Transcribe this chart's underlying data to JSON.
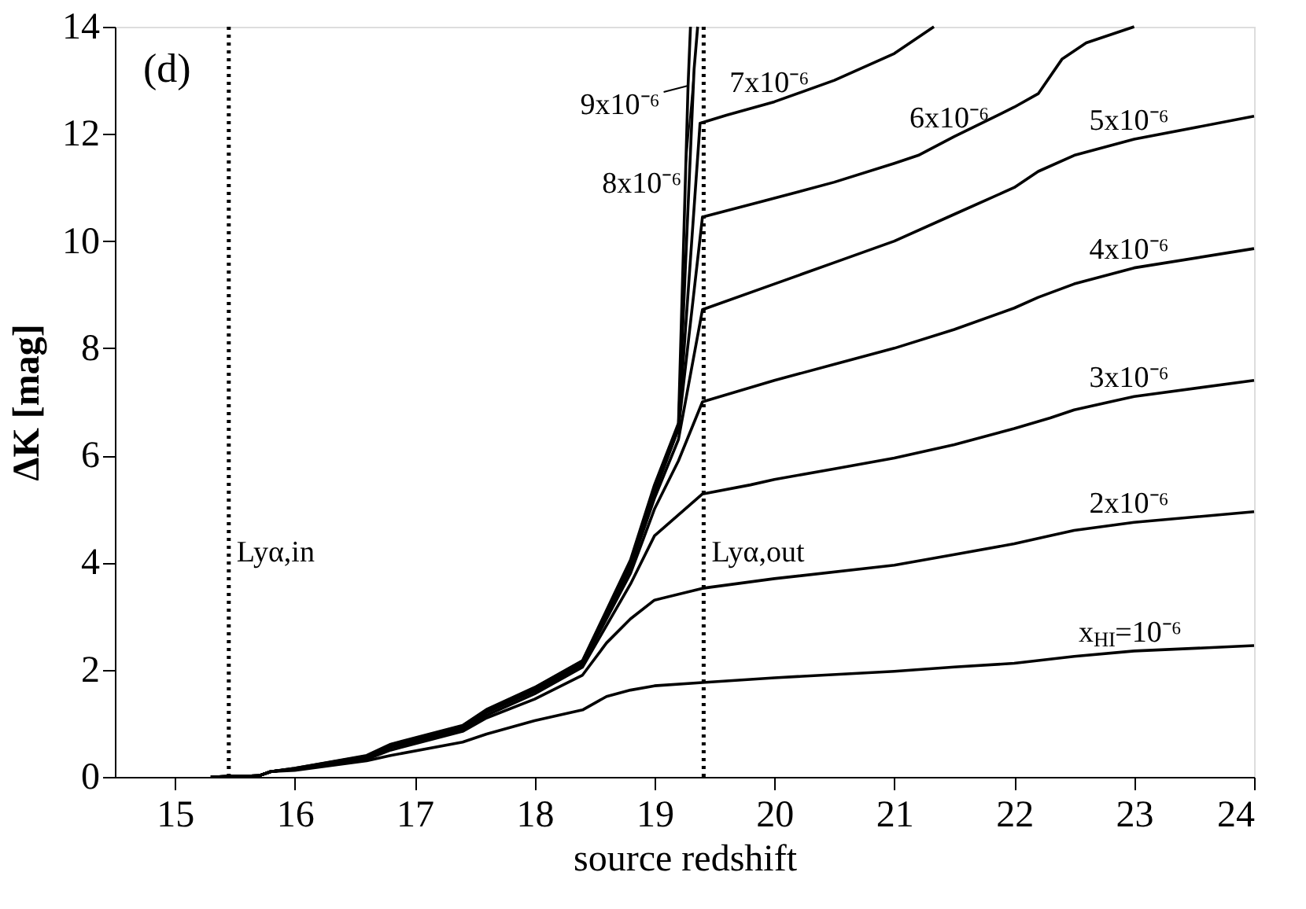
{
  "chart_data": {
    "type": "line",
    "xlabel": "source redshift",
    "ylabel": "ΔK [mag]",
    "xlim": [
      14.5,
      24
    ],
    "xticks": [
      15,
      16,
      17,
      18,
      19,
      20,
      21,
      22,
      23,
      24
    ],
    "ylim": [
      0,
      14
    ],
    "yticks": [
      0,
      2,
      4,
      6,
      8,
      10,
      12,
      14
    ],
    "grid": false,
    "marker": "none",
    "line_style": "solid",
    "series": [
      {
        "color": "#000000",
        "x": [
          15.3,
          15.7,
          15.8,
          16,
          16.6,
          16.8,
          17.4,
          17.6,
          18,
          18.4,
          18.6,
          18.8,
          19,
          19.4,
          20,
          21,
          21.5,
          22,
          22.5,
          23,
          24
        ],
        "values": [
          0,
          0.02,
          0.1,
          0.12,
          0.3,
          0.4,
          0.65,
          0.8,
          1.05,
          1.25,
          1.5,
          1.62,
          1.7,
          1.76,
          1.85,
          1.97,
          2.05,
          2.12,
          2.25,
          2.35,
          2.45
        ]
      },
      {
        "color": "#000000",
        "x": [
          15.3,
          15.7,
          15.8,
          16,
          16.6,
          16.8,
          17.4,
          17.6,
          18,
          18.4,
          18.6,
          18.8,
          19,
          19.4,
          20,
          21,
          21.5,
          22,
          22.3,
          22.5,
          23,
          24
        ],
        "values": [
          0,
          0.02,
          0.1,
          0.14,
          0.33,
          0.5,
          0.85,
          1.1,
          1.45,
          1.9,
          2.5,
          2.95,
          3.3,
          3.52,
          3.7,
          3.95,
          4.15,
          4.35,
          4.5,
          4.6,
          4.75,
          4.95
        ]
      },
      {
        "color": "#000000",
        "x": [
          15.3,
          15.7,
          15.8,
          16,
          16.6,
          16.8,
          17.4,
          17.6,
          18,
          18.4,
          18.8,
          19,
          19.4,
          19.8,
          20,
          20.5,
          21,
          21.5,
          22,
          22.3,
          22.5,
          23,
          24
        ],
        "values": [
          0,
          0.02,
          0.1,
          0.15,
          0.35,
          0.55,
          0.9,
          1.15,
          1.55,
          2.05,
          3.6,
          4.5,
          5.28,
          5.45,
          5.55,
          5.75,
          5.95,
          6.2,
          6.5,
          6.7,
          6.85,
          7.1,
          7.4
        ]
      },
      {
        "color": "#000000",
        "x": [
          15.3,
          15.7,
          15.8,
          16,
          16.6,
          16.8,
          17.4,
          17.6,
          18,
          18.4,
          18.8,
          19,
          19.2,
          19.4,
          20,
          20.5,
          21,
          21.5,
          22,
          22.2,
          22.5,
          23,
          24
        ],
        "values": [
          0,
          0.02,
          0.1,
          0.15,
          0.35,
          0.55,
          0.9,
          1.2,
          1.6,
          2.1,
          3.8,
          5.0,
          5.9,
          7.0,
          7.4,
          7.7,
          8.0,
          8.35,
          8.75,
          8.95,
          9.2,
          9.5,
          9.86
        ]
      },
      {
        "color": "#000000",
        "x": [
          15.3,
          15.7,
          15.8,
          16,
          16.6,
          16.8,
          17.4,
          17.6,
          18,
          18.4,
          18.8,
          19,
          19.2,
          19.4,
          20,
          20.5,
          21,
          21.5,
          22,
          22.2,
          22.5,
          23,
          24
        ],
        "values": [
          0,
          0.02,
          0.1,
          0.15,
          0.36,
          0.57,
          0.92,
          1.22,
          1.62,
          2.12,
          3.9,
          5.2,
          6.3,
          8.72,
          9.2,
          9.6,
          10.0,
          10.5,
          11.0,
          11.3,
          11.6,
          11.9,
          12.33
        ]
      },
      {
        "color": "#000000",
        "x": [
          15.3,
          15.7,
          15.8,
          16,
          16.6,
          16.8,
          17.4,
          17.6,
          18,
          18.4,
          18.8,
          19,
          19.2,
          19.4,
          20,
          20.5,
          21,
          21.2,
          21.5,
          22,
          22.2,
          22.4,
          22.6,
          23
        ],
        "values": [
          0,
          0.02,
          0.1,
          0.15,
          0.37,
          0.58,
          0.93,
          1.23,
          1.64,
          2.14,
          3.95,
          5.3,
          6.5,
          10.45,
          10.8,
          11.1,
          11.45,
          11.6,
          11.95,
          12.5,
          12.75,
          13.4,
          13.7,
          14
        ]
      },
      {
        "color": "#000000",
        "x": [
          15.3,
          15.7,
          15.8,
          16,
          16.6,
          16.8,
          17.4,
          17.6,
          18,
          18.4,
          18.8,
          19,
          19.2,
          19.38,
          19.6,
          20,
          20.5,
          21,
          21.33
        ],
        "values": [
          0,
          0.02,
          0.1,
          0.15,
          0.38,
          0.59,
          0.94,
          1.24,
          1.65,
          2.15,
          4.0,
          5.35,
          6.5,
          12.2,
          12.35,
          12.6,
          13.0,
          13.5,
          14
        ]
      },
      {
        "color": "#000000",
        "x": [
          15.3,
          15.7,
          15.8,
          16,
          16.6,
          16.8,
          17.4,
          17.6,
          18,
          18.4,
          18.8,
          19,
          19.2,
          19.33,
          19.36
        ],
        "values": [
          0,
          0.02,
          0.1,
          0.16,
          0.39,
          0.6,
          0.95,
          1.25,
          1.66,
          2.16,
          4.0,
          5.4,
          6.55,
          13.2,
          14
        ]
      },
      {
        "color": "#000000",
        "x": [
          15.3,
          15.7,
          15.8,
          16,
          16.6,
          16.8,
          17.4,
          17.6,
          18,
          18.4,
          18.8,
          19,
          19.2,
          19.28,
          19.3
        ],
        "values": [
          0,
          0.02,
          0.1,
          0.16,
          0.4,
          0.61,
          0.96,
          1.26,
          1.67,
          2.17,
          4.05,
          5.45,
          6.6,
          12.9,
          14
        ]
      }
    ],
    "ref_lines": [
      {
        "axis": "x",
        "value": 15.45,
        "label": "Lyα,in",
        "color": "#000000",
        "line_style": "dotted"
      },
      {
        "axis": "x",
        "value": 19.41,
        "label": "Lyα,out",
        "color": "#000000",
        "line_style": "dotted"
      }
    ],
    "annotations": [
      "(d)",
      {
        "text": "x$_{HI}$=10⁻⁶",
        "x": 23,
        "y": 2.35
      },
      {
        "text": "2x10⁻⁶",
        "x": 23,
        "y": 4.75
      },
      {
        "text": "3x10⁻⁶",
        "x": 23,
        "y": 7.1
      },
      {
        "text": "4x10⁻⁶",
        "x": 23,
        "y": 9.5
      },
      {
        "text": "5x10⁻⁶",
        "x": 23,
        "y": 11.9
      },
      {
        "text": "6x10⁻⁶",
        "x": 21.5,
        "y": 11.95
      },
      {
        "text": "7x10⁻⁶",
        "x": 20,
        "y": 12.6
      },
      {
        "text": "9x10⁻⁶",
        "x": 19.28,
        "y": 12.9
      },
      {
        "text": "8x10⁻⁶",
        "x": 19.33,
        "y": 13.2
      }
    ]
  }
}
